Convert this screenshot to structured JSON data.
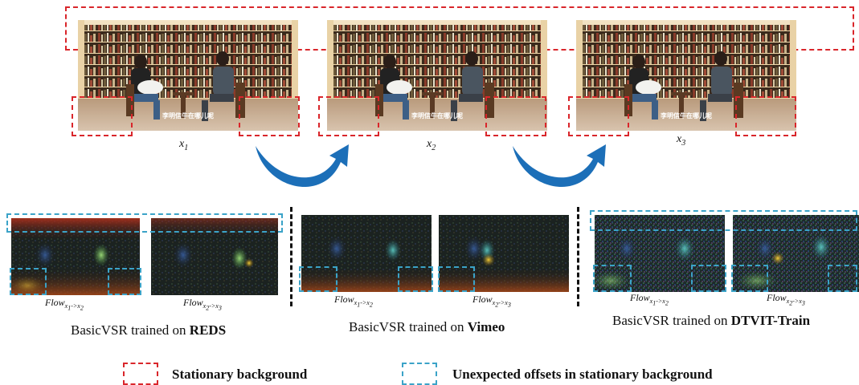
{
  "frames": [
    {
      "label": "x",
      "sub": "1",
      "subtitle": "李明信牛在哪儿呢"
    },
    {
      "label": "x",
      "sub": "2",
      "subtitle": "李明信牛在哪儿呢"
    },
    {
      "label": "x",
      "sub": "3",
      "subtitle": "李明信牛在哪儿呢"
    }
  ],
  "flow_labels": [
    {
      "base": "Flow",
      "sub": "x",
      "from": "1",
      "to": "2"
    },
    {
      "base": "Flow",
      "sub": "x",
      "from": "2",
      "to": "3"
    }
  ],
  "groups": [
    {
      "prefix": "BasicVSR trained on ",
      "dataset": "REDS"
    },
    {
      "prefix": "BasicVSR trained on ",
      "dataset": "Vimeo"
    },
    {
      "prefix": "BasicVSR trained on ",
      "dataset": "DTVIT-Train"
    }
  ],
  "legend": {
    "stationary": "Stationary background",
    "offsets": "Unexpected offsets in stationary background"
  },
  "colors": {
    "red_dash": "#d9262b",
    "blue_dash": "#3ba3c8",
    "arrow": "#1c6fb8"
  }
}
